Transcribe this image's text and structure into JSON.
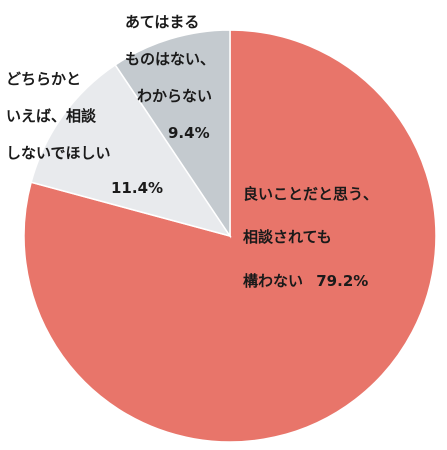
{
  "chart_data": {
    "type": "pie",
    "start": "12 o'clock",
    "direction": "clockwise",
    "slices": [
      {
        "value": 79.2,
        "percent_text": "79.2%",
        "label_lines": [
          "良いことだと思う、",
          "相談されても",
          "構わない"
        ],
        "color": "#e8756a"
      },
      {
        "value": 11.4,
        "percent_text": "11.4%",
        "label_lines": [
          "どちらかと",
          "いえば、相談",
          "しないでほしい"
        ],
        "color": "#e8eaed"
      },
      {
        "value": 9.4,
        "percent_text": "9.4%",
        "label_lines": [
          "あてはまる",
          "ものはない、",
          "わからない"
        ],
        "color": "#c4cacf"
      }
    ],
    "edge_color": "#ffffff"
  }
}
